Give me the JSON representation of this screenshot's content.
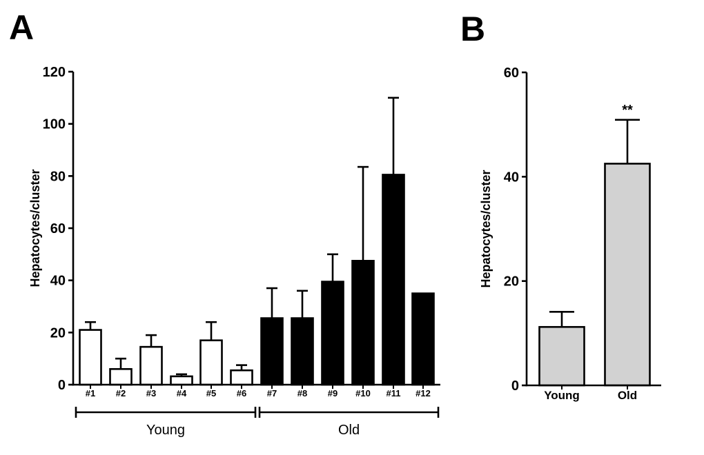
{
  "panels": {
    "a": {
      "label": "A"
    },
    "b": {
      "label": "B"
    }
  },
  "colors": {
    "young_bar_fill": "#ffffff",
    "old_bar_fill": "#000000",
    "summary_bar_fill": "#d2d2d2",
    "axis": "#000000",
    "background": "#ffffff"
  },
  "chart_data": [
    {
      "id": "A",
      "type": "bar",
      "title": "",
      "xlabel": "",
      "ylabel": "Hepatocytes/cluster",
      "ylim": [
        0,
        120
      ],
      "yticks": [
        0,
        20,
        40,
        60,
        80,
        100,
        120
      ],
      "grid": false,
      "legend": "none",
      "categories": [
        "#1",
        "#2",
        "#3",
        "#4",
        "#5",
        "#6",
        "#7",
        "#8",
        "#9",
        "#10",
        "#11",
        "#12"
      ],
      "values": [
        21,
        6,
        14.5,
        3.2,
        17,
        5.5,
        25.5,
        25.5,
        39.5,
        47.5,
        80.5,
        35
      ],
      "errors_sd": [
        3,
        4,
        4.5,
        0.8,
        7,
        2,
        11.5,
        10.5,
        10.5,
        36,
        29.5,
        0
      ],
      "bar_fills": [
        "#ffffff",
        "#ffffff",
        "#ffffff",
        "#ffffff",
        "#ffffff",
        "#ffffff",
        "#000000",
        "#000000",
        "#000000",
        "#000000",
        "#000000",
        "#000000"
      ],
      "groups": [
        {
          "label": "Young",
          "start": 0,
          "end": 5
        },
        {
          "label": "Old",
          "start": 6,
          "end": 11
        }
      ]
    },
    {
      "id": "B",
      "type": "bar",
      "title": "",
      "xlabel": "",
      "ylabel": "Hepatocytes/cluster",
      "ylim": [
        0,
        60
      ],
      "yticks": [
        0,
        20,
        40,
        60
      ],
      "grid": false,
      "legend": "none",
      "categories": [
        "Young",
        "Old"
      ],
      "values": [
        11.2,
        42.5
      ],
      "errors_sd": [
        2.9,
        8.4
      ],
      "bar_fills": [
        "#d2d2d2",
        "#d2d2d2"
      ],
      "annotations": [
        {
          "text": "**",
          "index": 1
        }
      ]
    }
  ]
}
